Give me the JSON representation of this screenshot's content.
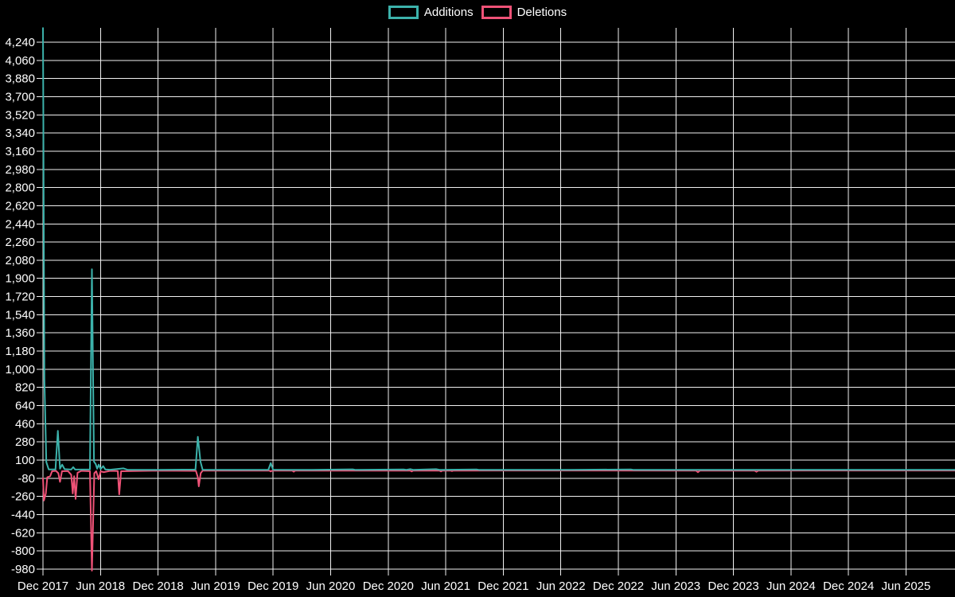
{
  "chart_data": {
    "type": "line",
    "title": "",
    "legend_position": "top-center",
    "background_color": "#000000",
    "text_color": "#ffffff",
    "grid": {
      "show": true,
      "color": "#f0f0f0"
    },
    "x_axis": {
      "label": "",
      "unit": "months since Dec 2017",
      "tick_values": [
        0,
        6,
        12,
        18,
        24,
        30,
        36,
        42,
        48,
        54,
        60,
        66,
        72,
        78,
        84,
        90
      ],
      "tick_labels": [
        "Dec 2017",
        "Jun 2018",
        "Dec 2018",
        "Jun 2019",
        "Dec 2019",
        "Jun 2020",
        "Dec 2020",
        "Jun 2021",
        "Dec 2021",
        "Jun 2022",
        "Dec 2022",
        "Jun 2023",
        "Dec 2023",
        "Jun 2024",
        "Dec 2024",
        "Jun 2025"
      ]
    },
    "y_axis": {
      "label": "",
      "tick_step": 180,
      "tick_values": [
        -980,
        -800,
        -620,
        -440,
        -260,
        -80,
        100,
        280,
        460,
        640,
        820,
        1000,
        1180,
        1360,
        1540,
        1720,
        1900,
        2080,
        2260,
        2440,
        2620,
        2800,
        2980,
        3160,
        3340,
        3520,
        3700,
        3880,
        4060,
        4240
      ],
      "tick_labels": [
        "-980",
        "-800",
        "-620",
        "-440",
        "-260",
        "-80",
        "100",
        "280",
        "460",
        "640",
        "820",
        "1,000",
        "1,180",
        "1,360",
        "1,540",
        "1,720",
        "1,900",
        "2,080",
        "2,260",
        "2,440",
        "2,620",
        "2,800",
        "2,980",
        "3,160",
        "3,340",
        "3,520",
        "3,700",
        "3,880",
        "4,060",
        "4,240"
      ],
      "plot_range": [
        -1000,
        4385
      ]
    },
    "series": [
      {
        "name": "Additions",
        "color": "#3cb2ab",
        "points": [
          [
            0,
            4380
          ],
          [
            0.15,
            900
          ],
          [
            0.35,
            80
          ],
          [
            0.6,
            8
          ],
          [
            1.3,
            8
          ],
          [
            1.55,
            390
          ],
          [
            1.78,
            15
          ],
          [
            2.0,
            55
          ],
          [
            2.25,
            10
          ],
          [
            2.95,
            6
          ],
          [
            3.15,
            30
          ],
          [
            3.35,
            6
          ],
          [
            4.9,
            8
          ],
          [
            5.1,
            1990
          ],
          [
            5.32,
            85
          ],
          [
            5.5,
            60
          ],
          [
            5.65,
            15
          ],
          [
            5.82,
            55
          ],
          [
            6.02,
            12
          ],
          [
            6.28,
            40
          ],
          [
            6.5,
            8
          ],
          [
            7.0,
            5
          ],
          [
            8.4,
            18
          ],
          [
            8.8,
            5
          ],
          [
            12,
            4
          ],
          [
            15.9,
            6
          ],
          [
            16.15,
            330
          ],
          [
            16.42,
            85
          ],
          [
            16.65,
            5
          ],
          [
            20,
            3
          ],
          [
            23.5,
            5
          ],
          [
            23.75,
            70
          ],
          [
            24.0,
            5
          ],
          [
            28,
            3
          ],
          [
            32.3,
            9
          ],
          [
            32.6,
            3
          ],
          [
            37.6,
            8
          ],
          [
            37.9,
            4
          ],
          [
            38.3,
            10
          ],
          [
            38.6,
            4
          ],
          [
            41.0,
            10
          ],
          [
            41.35,
            4
          ],
          [
            45.2,
            8
          ],
          [
            45.5,
            3
          ],
          [
            55,
            3
          ],
          [
            61.3,
            8
          ],
          [
            61.6,
            3
          ],
          [
            70,
            3
          ],
          [
            85,
            3
          ],
          [
            95.5,
            3
          ]
        ]
      },
      {
        "name": "Deletions",
        "color": "#ef5277",
        "points": [
          [
            0,
            -80
          ],
          [
            0.1,
            -300
          ],
          [
            0.3,
            -230
          ],
          [
            0.45,
            -70
          ],
          [
            0.75,
            -60
          ],
          [
            0.95,
            -10
          ],
          [
            1.35,
            -6
          ],
          [
            1.6,
            -30
          ],
          [
            1.78,
            -115
          ],
          [
            1.98,
            -10
          ],
          [
            2.6,
            -8
          ],
          [
            2.95,
            -45
          ],
          [
            3.1,
            -230
          ],
          [
            3.25,
            -60
          ],
          [
            3.4,
            -285
          ],
          [
            3.6,
            -25
          ],
          [
            4.0,
            -6
          ],
          [
            4.9,
            -10
          ],
          [
            5.1,
            -995
          ],
          [
            5.35,
            -30
          ],
          [
            5.55,
            -10
          ],
          [
            5.8,
            -90
          ],
          [
            6.02,
            -12
          ],
          [
            6.35,
            -20
          ],
          [
            7.0,
            -6
          ],
          [
            7.8,
            -8
          ],
          [
            7.95,
            -240
          ],
          [
            8.15,
            -10
          ],
          [
            12,
            -4
          ],
          [
            15.95,
            -6
          ],
          [
            16.15,
            -70
          ],
          [
            16.25,
            -160
          ],
          [
            16.45,
            -30
          ],
          [
            16.65,
            -5
          ],
          [
            23.6,
            -4
          ],
          [
            23.75,
            -12
          ],
          [
            23.9,
            -4
          ],
          [
            26.0,
            -4
          ],
          [
            26.15,
            -15
          ],
          [
            26.3,
            -4
          ],
          [
            38.3,
            -4
          ],
          [
            38.45,
            -12
          ],
          [
            38.6,
            -4
          ],
          [
            41.35,
            -4
          ],
          [
            41.5,
            -12
          ],
          [
            41.65,
            -4
          ],
          [
            42.5,
            -4
          ],
          [
            42.65,
            -9
          ],
          [
            42.8,
            -4
          ],
          [
            55,
            -3
          ],
          [
            68.1,
            -4
          ],
          [
            68.3,
            -20
          ],
          [
            68.5,
            -4
          ],
          [
            74.2,
            -4
          ],
          [
            74.4,
            -16
          ],
          [
            74.6,
            -4
          ],
          [
            85,
            -3
          ],
          [
            95.5,
            -3
          ]
        ]
      }
    ]
  }
}
